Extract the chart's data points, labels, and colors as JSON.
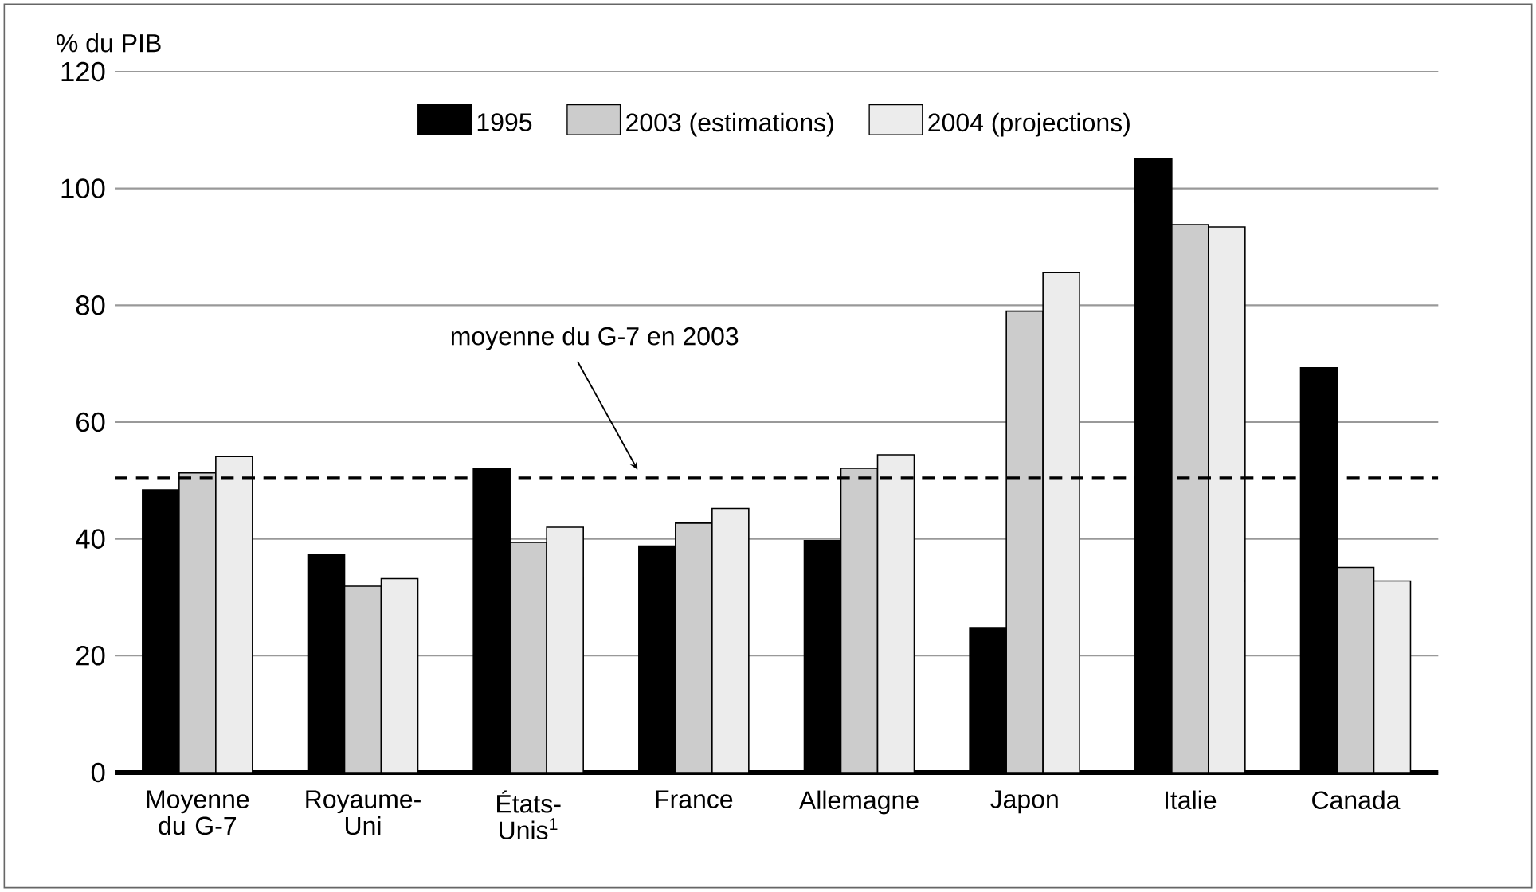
{
  "chart_data": {
    "type": "bar",
    "ylabel": "% du PIB",
    "categories": [
      "Moyenne du G-7",
      "Royaume-Uni",
      "États-Unis$^{1}$",
      "France",
      "Allemagne",
      "Japon",
      "Italie",
      "Canada"
    ],
    "series": [
      {
        "name": "1995",
        "color": "#000000",
        "values": [
          48.4,
          37.4,
          52.1,
          38.8,
          39.7,
          24.8,
          105.1,
          69.3
        ]
      },
      {
        "name": "2003 (estimations)",
        "color": "#cccccc",
        "values": [
          51.3,
          31.9,
          39.4,
          42.7,
          52.1,
          79.0,
          93.8,
          35.1
        ]
      },
      {
        "name": "2004 (projections)",
        "color": "#ececec",
        "values": [
          54.1,
          33.2,
          42.0,
          45.2,
          54.4,
          85.6,
          93.4,
          32.8
        ]
      }
    ],
    "ylim": [
      0,
      120
    ],
    "yticks": [
      0,
      20,
      40,
      60,
      80,
      100,
      120
    ],
    "grid": "y",
    "legend": "top",
    "ref_lines": [
      {
        "axis": "y",
        "value": 50.4,
        "label": "moyenne du G-7 en 2003",
        "line_style": "dashed",
        "color": "#000000"
      }
    ]
  }
}
